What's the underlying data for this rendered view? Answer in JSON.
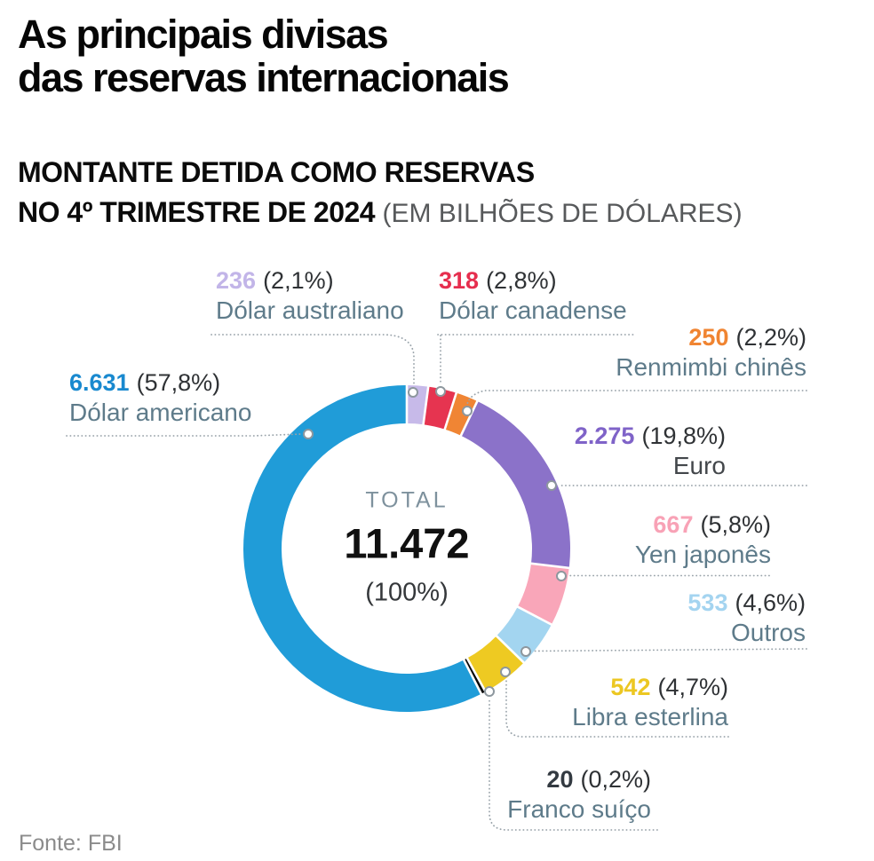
{
  "header": {
    "title_line1": "As principais divisas",
    "title_line2": "das reservas internacionais",
    "subtitle_line1": "MONTANTE DETIDA COMO RESERVAS",
    "subtitle_line2_bold": "NO 4º TRIMESTRE DE 2024",
    "subtitle_line2_note": "(EM BILHÕES DE DÓLARES)"
  },
  "chart_data": {
    "type": "pie",
    "variant": "donut",
    "title": "As principais divisas das reservas internacionais",
    "subtitle": "Montante detida como reservas no 4º trimestre de 2024 (em bilhões de dólares)",
    "unit": "bilhões de dólares",
    "start_angle_deg": 0,
    "direction": "clockwise",
    "total": 11472,
    "center": {
      "label": "TOTAL",
      "value_display": "11.472",
      "pct_display": "(100%)"
    },
    "slices": [
      {
        "id": "dolar-australiano",
        "label": "Dólar australiano",
        "value": 236,
        "value_display": "236",
        "pct": 2.1,
        "pct_display": "(2,1%)",
        "color": "#c7bae9",
        "number_color": "#c2b5e8"
      },
      {
        "id": "dolar-canadense",
        "label": "Dólar canadense",
        "value": 318,
        "value_display": "318",
        "pct": 2.8,
        "pct_display": "(2,8%)",
        "color": "#e63450",
        "number_color": "#e62e4e"
      },
      {
        "id": "renmimbi-chines",
        "label": "Renmimbi chinês",
        "value": 250,
        "value_display": "250",
        "pct": 2.2,
        "pct_display": "(2,2%)",
        "color": "#f08534",
        "number_color": "#f08431"
      },
      {
        "id": "euro",
        "label": "Euro",
        "value": 2275,
        "value_display": "2.275",
        "pct": 19.8,
        "pct_display": "(19,8%)",
        "color": "#8b72c9",
        "number_color": "#7f63c8",
        "label_color": "#43474b"
      },
      {
        "id": "yen-japones",
        "label": "Yen japonês",
        "value": 667,
        "value_display": "667",
        "pct": 5.8,
        "pct_display": "(5,8%)",
        "color": "#f9a6b9",
        "number_color": "#f8a2b6"
      },
      {
        "id": "outros",
        "label": "Outros",
        "value": 533,
        "value_display": "533",
        "pct": 4.6,
        "pct_display": "(4,6%)",
        "color": "#a3d5f0",
        "number_color": "#a4d4f0"
      },
      {
        "id": "libra-esterlina",
        "label": "Libra esterlina",
        "value": 542,
        "value_display": "542",
        "pct": 4.7,
        "pct_display": "(4,7%)",
        "color": "#eeca22",
        "number_color": "#ecc722"
      },
      {
        "id": "franco-suico",
        "label": "Franco suíço",
        "value": 20,
        "value_display": "20",
        "pct": 0.2,
        "pct_display": "(0,2%)",
        "color": "#0a0a0a",
        "number_color": "#333a41"
      },
      {
        "id": "dolar-americano",
        "label": "Dólar americano",
        "value": 6631,
        "value_display": "6.631",
        "pct": 57.8,
        "pct_display": "(57,8%)",
        "color": "#209cd8",
        "number_color": "#1989cf"
      }
    ]
  },
  "footer": {
    "source": "Fonte: FBI"
  }
}
